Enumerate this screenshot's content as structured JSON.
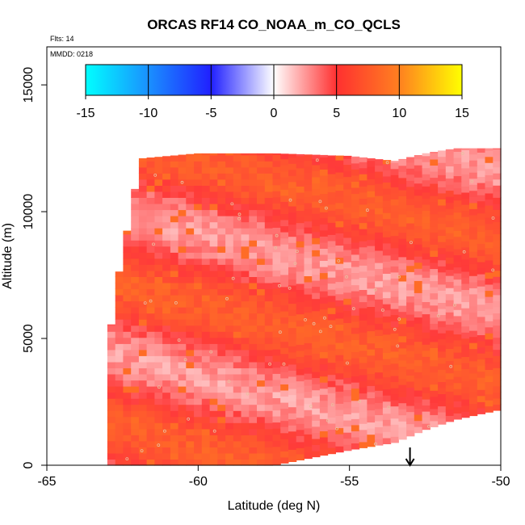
{
  "chart_data": {
    "type": "heatmap",
    "title": "ORCAS RF14 CO_NOAA_m_CO_QCLS",
    "note_flts": "Flts: 14",
    "note_mmdd": "MMDD: 0218",
    "xlabel": "Latitude (deg N)",
    "ylabel": "Altitude (m)",
    "xlim": [
      -65,
      -50
    ],
    "ylim": [
      0,
      16500
    ],
    "x_ticks": [
      -65,
      -60,
      -55,
      -50
    ],
    "y_ticks": [
      0,
      5000,
      10000,
      15000
    ],
    "colorbar": {
      "ticks": [
        -15,
        -10,
        -5,
        0,
        5,
        10,
        15
      ],
      "range": [
        -15,
        15
      ],
      "colors": [
        "#00ffff",
        "#0080ff",
        "#2020ff",
        "#ffffff",
        "#ff3030",
        "#ff8020",
        "#ffff00"
      ]
    },
    "annotation": "down arrow at -53 deg N near altitude 0",
    "arrow_lat": -53,
    "columns": [
      {
        "lat": -63.0,
        "bottom": 0,
        "top": 3800
      },
      {
        "lat": -62.8,
        "bottom": 0,
        "top": 6500
      },
      {
        "lat": -62.5,
        "bottom": 0,
        "top": 8300
      },
      {
        "lat": -62.2,
        "bottom": 0,
        "top": 10200
      },
      {
        "lat": -61.9,
        "bottom": 0,
        "top": 12100
      },
      {
        "lat": -60.0,
        "bottom": 0,
        "top": 12300
      },
      {
        "lat": -57.5,
        "bottom": 0,
        "top": 12300
      },
      {
        "lat": -55.0,
        "bottom": 600,
        "top": 12200
      },
      {
        "lat": -53.5,
        "bottom": 900,
        "top": 12000
      },
      {
        "lat": -52.5,
        "bottom": 1400,
        "top": 12300
      },
      {
        "lat": -51.5,
        "bottom": 1800,
        "top": 12500
      },
      {
        "lat": -50.0,
        "bottom": 2200,
        "top": 12500
      }
    ]
  }
}
